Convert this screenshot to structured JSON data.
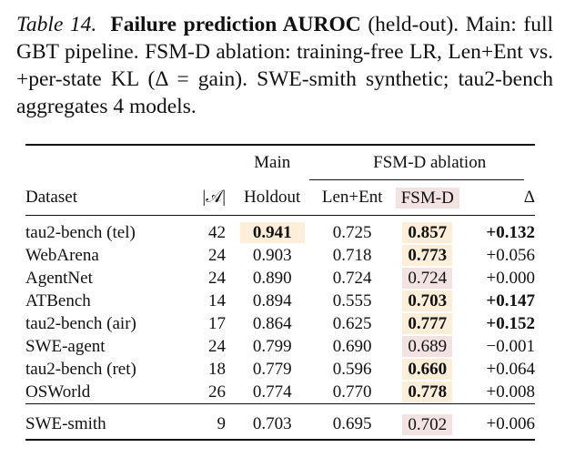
{
  "caption": {
    "label": "Table 14.",
    "title": "Failure prediction AUROC",
    "text": "(held-out). Main: full GBT pipeline. FSM-D ablation: training-free LR, Len+Ent vs. +per-state KL (Δ = gain). SWE-smith synthetic; tau2-bench aggregates 4 models."
  },
  "table": {
    "group_headers": {
      "main": "Main",
      "ablation": "FSM-D ablation"
    },
    "columns": {
      "dataset": "Dataset",
      "actions": "|𝒜|",
      "holdout": "Holdout",
      "lenent": "Len+Ent",
      "fsmd": "FSM-D",
      "delta": "Δ"
    },
    "rows": [
      {
        "dataset": "tau2-bench (tel)",
        "actions": "42",
        "holdout": "0.941",
        "lenent": "0.725",
        "fsmd": "0.857",
        "delta": "+0.132"
      },
      {
        "dataset": "WebArena",
        "actions": "24",
        "holdout": "0.903",
        "lenent": "0.718",
        "fsmd": "0.773",
        "delta": "+0.056"
      },
      {
        "dataset": "AgentNet",
        "actions": "24",
        "holdout": "0.890",
        "lenent": "0.724",
        "fsmd": "0.724",
        "delta": "+0.000"
      },
      {
        "dataset": "ATBench",
        "actions": "14",
        "holdout": "0.894",
        "lenent": "0.555",
        "fsmd": "0.703",
        "delta": "+0.147"
      },
      {
        "dataset": "tau2-bench (air)",
        "actions": "17",
        "holdout": "0.864",
        "lenent": "0.625",
        "fsmd": "0.777",
        "delta": "+0.152"
      },
      {
        "dataset": "SWE-agent",
        "actions": "24",
        "holdout": "0.799",
        "lenent": "0.690",
        "fsmd": "0.689",
        "delta": "−0.001"
      },
      {
        "dataset": "tau2-bench (ret)",
        "actions": "18",
        "holdout": "0.779",
        "lenent": "0.596",
        "fsmd": "0.660",
        "delta": "+0.064"
      },
      {
        "dataset": "OSWorld",
        "actions": "26",
        "holdout": "0.774",
        "lenent": "0.770",
        "fsmd": "0.778",
        "delta": "+0.008"
      }
    ],
    "synthetic_row": {
      "dataset": "SWE-smith",
      "actions": "9",
      "holdout": "0.703",
      "lenent": "0.695",
      "fsmd": "0.702",
      "delta": "+0.006"
    },
    "highlight_colors": {
      "peach": "#fdeeda",
      "pink": "#f3e2e2"
    }
  }
}
